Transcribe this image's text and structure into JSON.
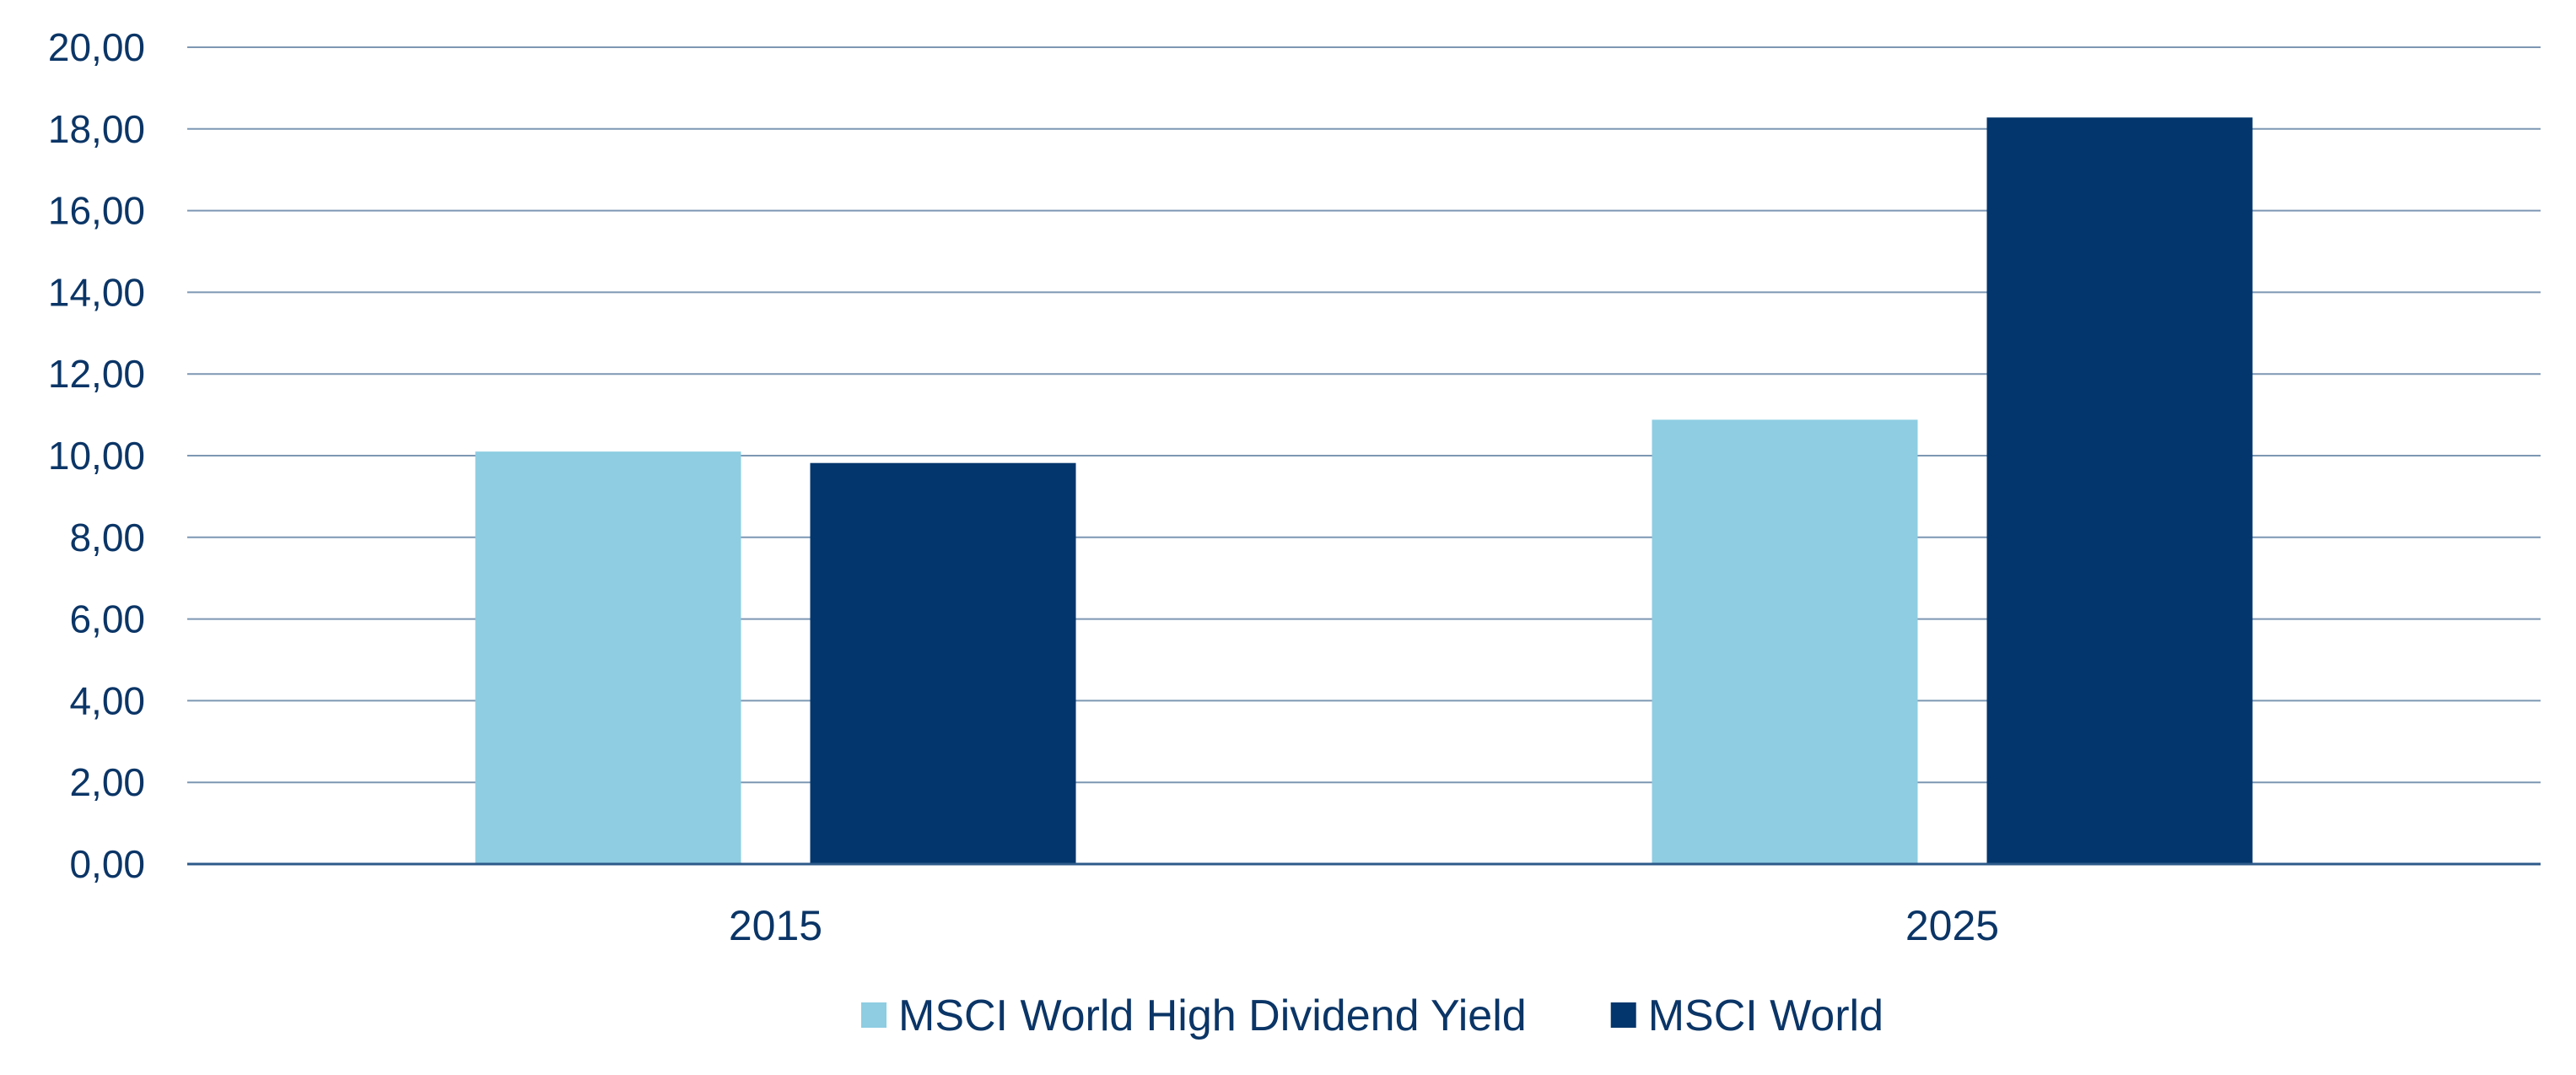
{
  "chart_data": {
    "type": "bar",
    "categories": [
      "2015",
      "2025"
    ],
    "series": [
      {
        "name": "MSCI World High Dividend Yield",
        "values": [
          10.1,
          10.88
        ],
        "color": "#8ecde2"
      },
      {
        "name": "MSCI World",
        "values": [
          9.82,
          18.28
        ],
        "color": "#02366c"
      }
    ],
    "ylim": [
      0,
      20
    ],
    "yticks": [
      "0,00",
      "2,00",
      "4,00",
      "6,00",
      "8,00",
      "10,00",
      "12,00",
      "14,00",
      "16,00",
      "18,00",
      "20,00"
    ],
    "grid": true,
    "legend": "bottom-center",
    "title": "",
    "xlabel": "",
    "ylabel": ""
  },
  "colors": {
    "text": "#0b3566",
    "grid": "#7d97b3",
    "axis": "#2d5a8a"
  }
}
